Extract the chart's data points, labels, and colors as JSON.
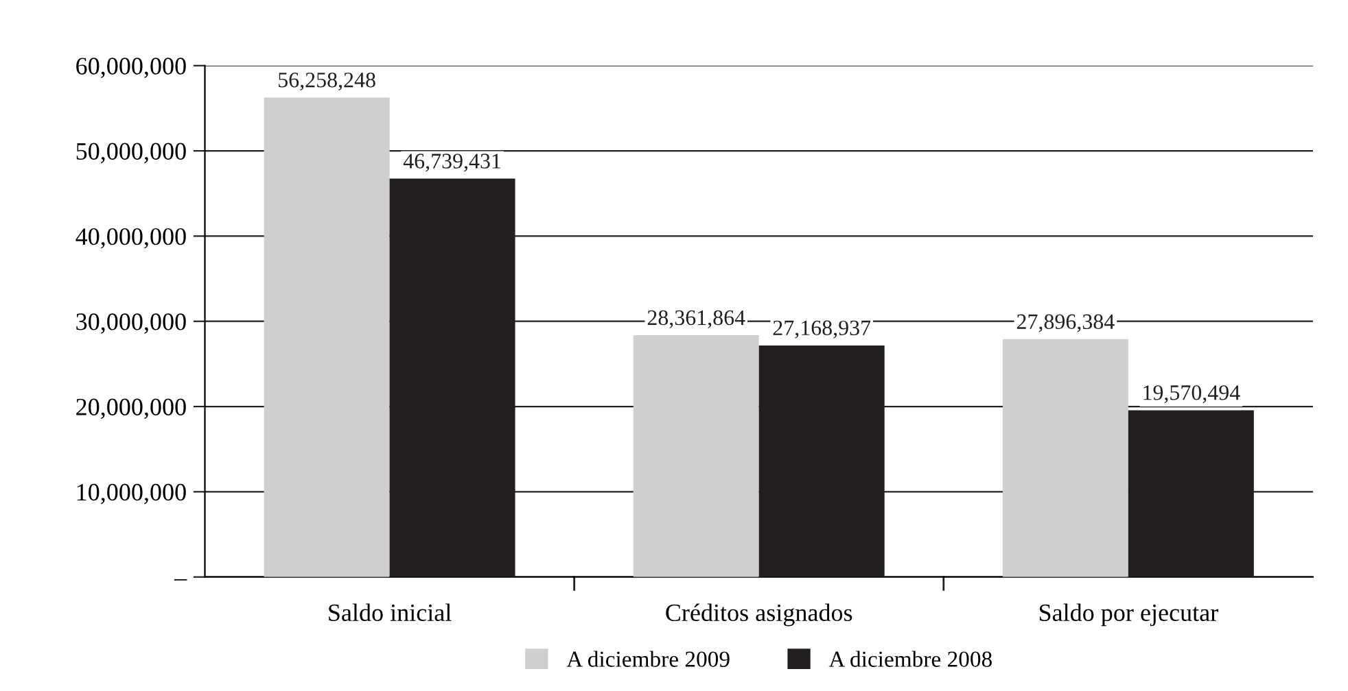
{
  "chart_data": {
    "type": "bar",
    "categories": [
      "Saldo inicial",
      "Créditos asignados",
      "Saldo por ejecutar"
    ],
    "series": [
      {
        "name": "A diciembre 2009",
        "color": "#cfcfcf",
        "values": [
          56258248,
          28361864,
          27896384
        ],
        "value_labels": [
          "56,258,248",
          "28,361,864",
          "27,896,384"
        ]
      },
      {
        "name": "A diciembre 2008",
        "color": "#231f20",
        "values": [
          46739431,
          27168937,
          19570494
        ],
        "value_labels": [
          "46,739,431",
          "27,168,937",
          "19,570,494"
        ]
      }
    ],
    "ylim": [
      0,
      60000000
    ],
    "yticks": [
      {
        "value": 0,
        "label": "–"
      },
      {
        "value": 10000000,
        "label": "10,000,000"
      },
      {
        "value": 20000000,
        "label": "20,000,000"
      },
      {
        "value": 30000000,
        "label": "30,000,000"
      },
      {
        "value": 40000000,
        "label": "40,000,000"
      },
      {
        "value": 50000000,
        "label": "50,000,000"
      },
      {
        "value": 60000000,
        "label": "60,000,000"
      }
    ],
    "grid": "y",
    "legend": "bottom"
  }
}
